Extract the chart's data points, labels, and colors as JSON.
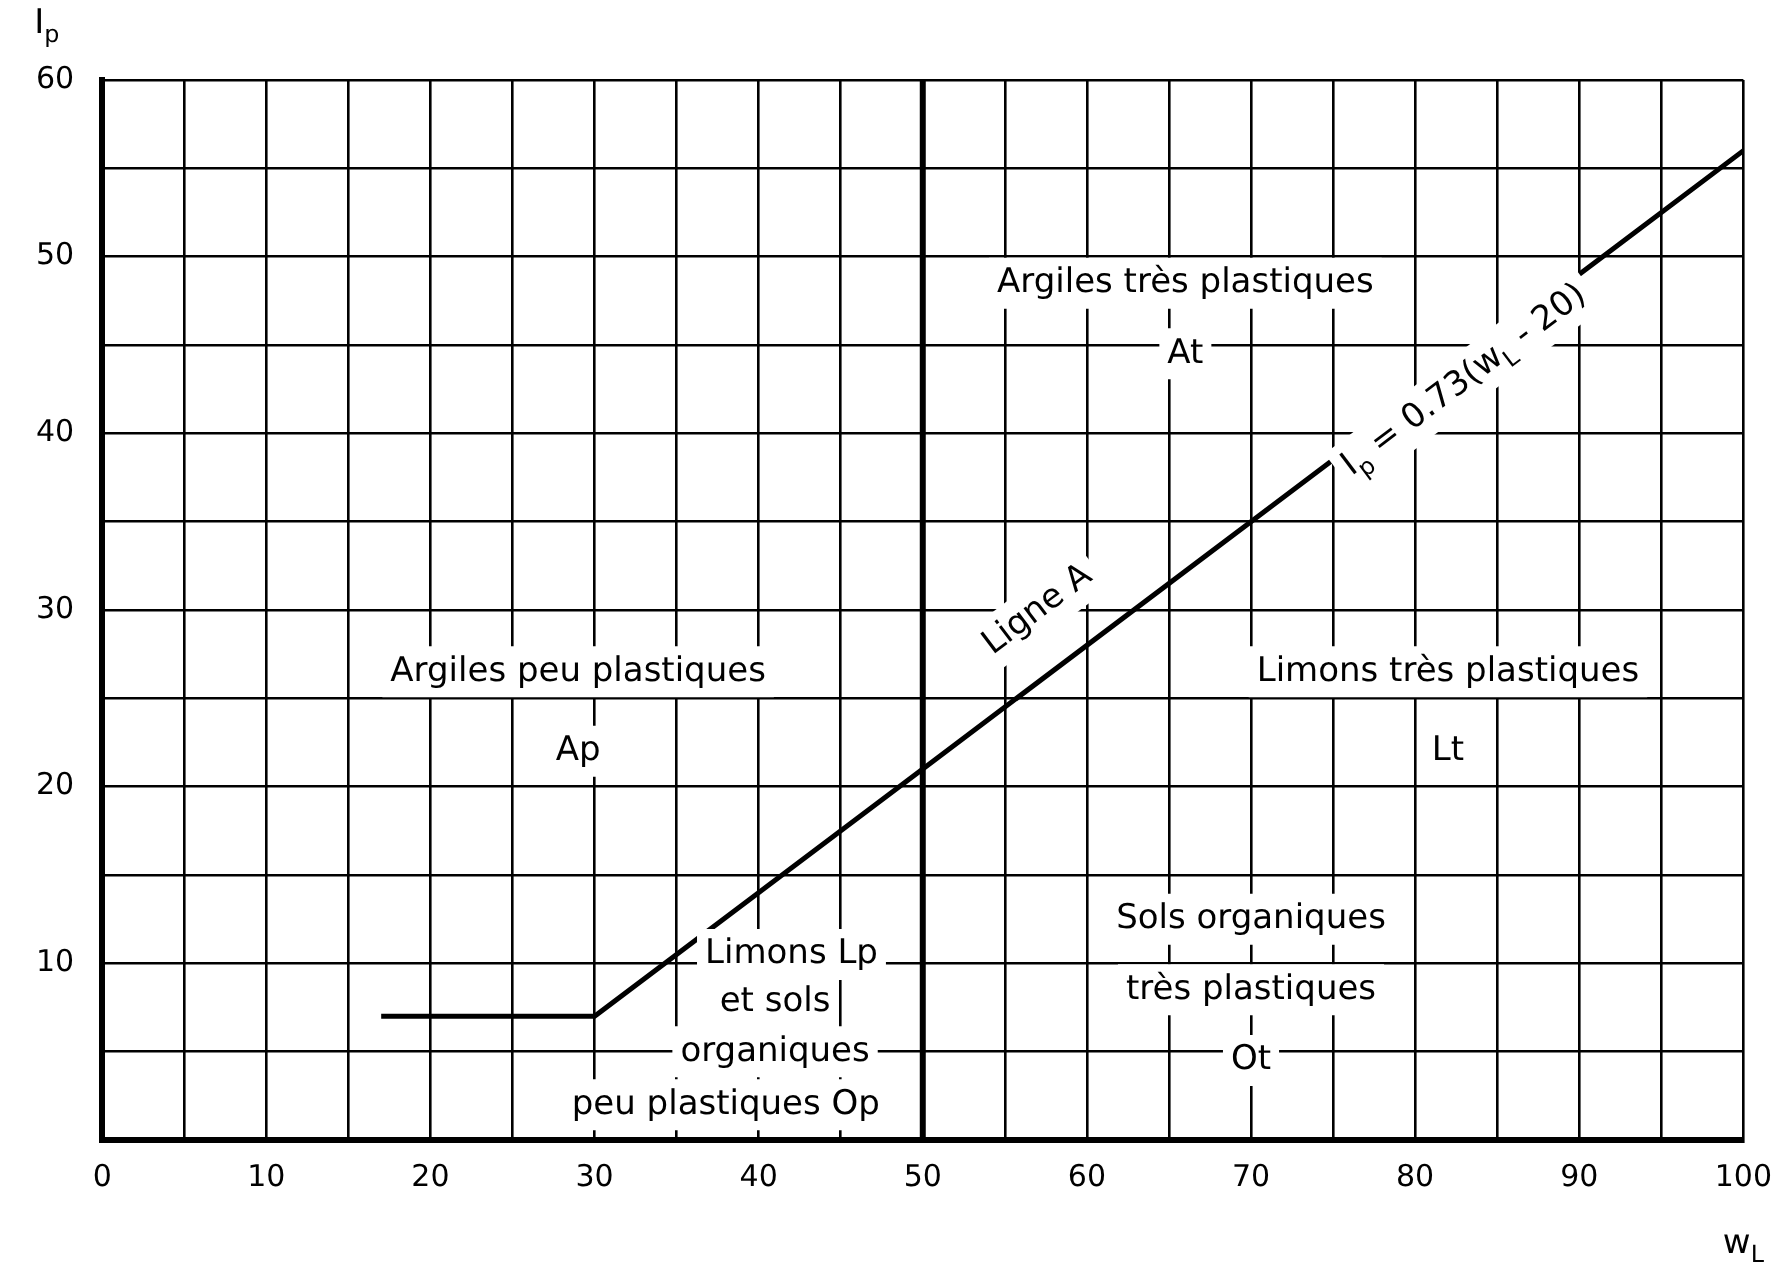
{
  "chart_data": {
    "type": "line",
    "xlabel": "w$_{L}$",
    "ylabel": "I$_{p}$",
    "xlim": [
      0,
      100
    ],
    "ylim": [
      0,
      60
    ],
    "xticks": [
      0,
      {
        "value": 5,
        "label": null
      },
      10,
      {
        "value": 15,
        "label": null
      },
      20,
      {
        "value": 25,
        "label": null
      },
      30,
      {
        "value": 35,
        "label": null
      },
      40,
      {
        "value": 45,
        "label": null
      },
      50,
      {
        "value": 55,
        "label": null
      },
      60,
      {
        "value": 65,
        "label": null
      },
      70,
      {
        "value": 75,
        "label": null
      },
      80,
      {
        "value": 85,
        "label": null
      },
      90,
      {
        "value": 95,
        "label": null
      },
      100
    ],
    "yticks": [
      {
        "value": 0,
        "label": null
      },
      {
        "value": 5,
        "label": null
      },
      10,
      {
        "value": 15,
        "label": null
      },
      20,
      {
        "value": 25,
        "label": null
      },
      30,
      {
        "value": 35,
        "label": null
      },
      40,
      {
        "value": 45,
        "label": null
      },
      50,
      {
        "value": 55,
        "label": null
      },
      60
    ],
    "grid": true,
    "marker": "none",
    "series": [
      {
        "color": "#000000",
        "x": [
          17,
          30,
          100
        ],
        "values": [
          7,
          7,
          56
        ]
      }
    ],
    "ref_lines": [
      {
        "axis": "x",
        "value": 50,
        "color": "#000000"
      }
    ],
    "annotations": [
      "Argiles très plastiques",
      "At",
      "Argiles peu plastiques",
      "Ap",
      "Limons très plastiques",
      "Lt",
      "Sols organiques",
      "très plastiques",
      "Ot",
      "Limons Lp",
      "et sols",
      "organiques",
      "peu plastiques Op",
      "Ligne A",
      "I$_{p}$ = 0.73(w$_{L}$ - 20)"
    ]
  }
}
